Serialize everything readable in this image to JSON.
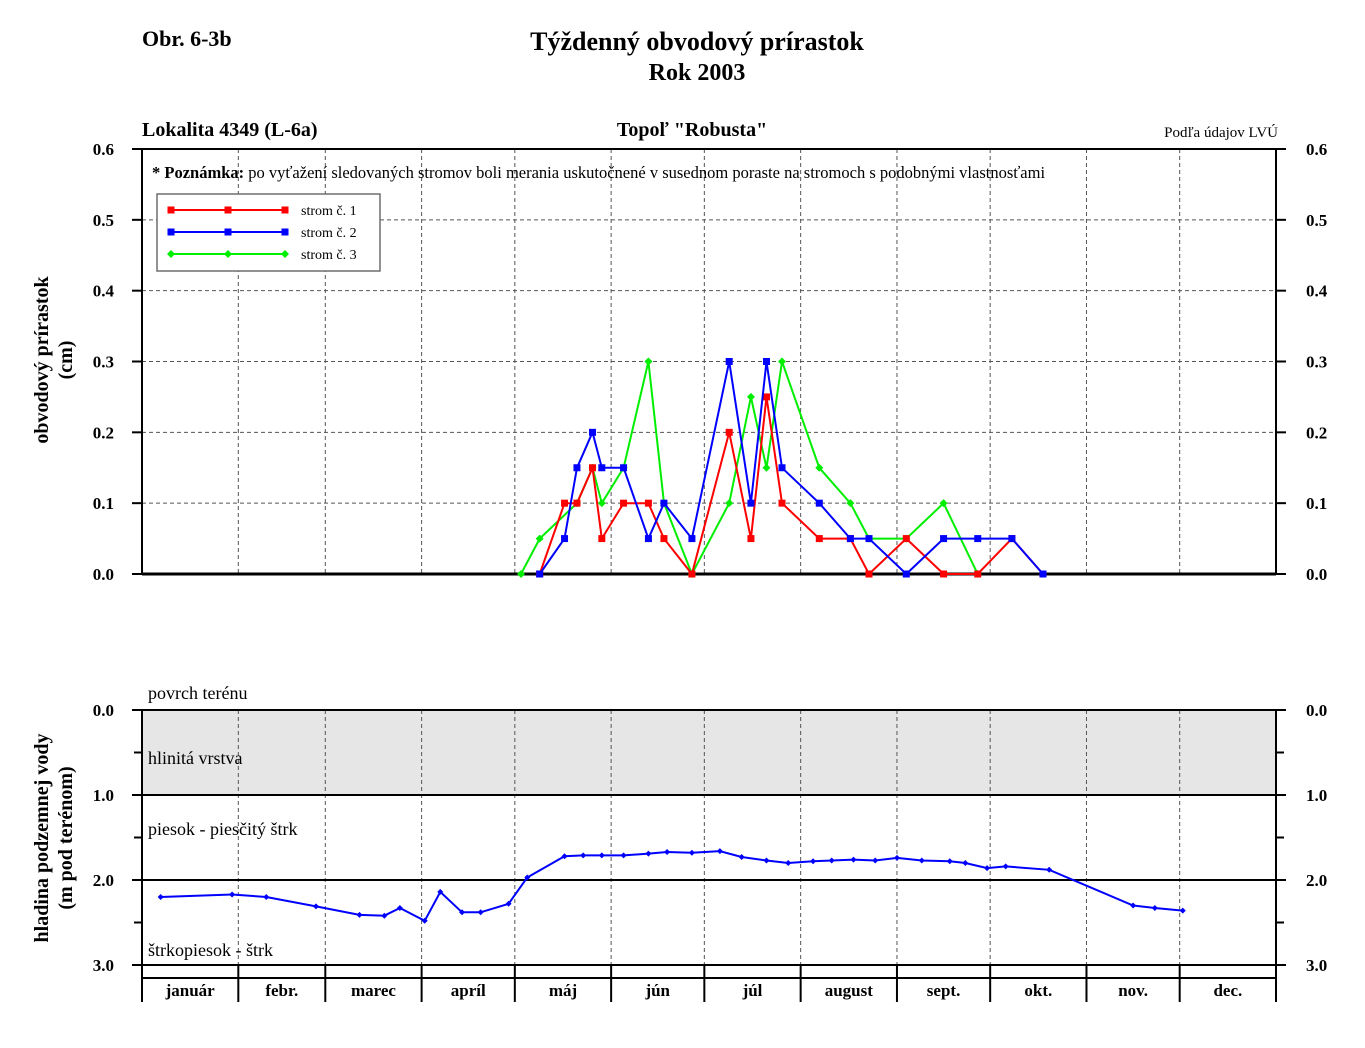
{
  "figure_label": "Obr. 6-3b",
  "title": "Týždenný obvodový prírastok",
  "subtitle": "Rok 2003",
  "colors": {
    "strom1": "#ff0000",
    "strom2": "#0000ff",
    "strom3": "#00ee00",
    "water": "#0000ff",
    "clay_fill": "#e6e6e6"
  },
  "chart_data": [
    {
      "type": "line",
      "header_left": "Lokalita 4349 (L-6a)",
      "header_center": "Topoľ \"Robusta\"",
      "header_right": "Podľa údajov LVÚ",
      "note_bold": "* Poznámka:",
      "note_text": " po vyťažení sledovaných stromov boli merania uskutočnené v susednom poraste na stromoch s podobnými vlastnosťami",
      "ylabel": "obvodový prírastok",
      "ylabel_unit": "(cm)",
      "ylim": [
        0,
        0.6
      ],
      "yticks": [
        "0.0",
        "0.1",
        "0.2",
        "0.3",
        "0.4",
        "0.5",
        "0.6"
      ],
      "grid": true,
      "legend_position": "top-left",
      "x_units": "day of year 2003",
      "series": [
        {
          "name": "strom č. 1",
          "color": "#ff0000",
          "marker": "square",
          "x": [
            128,
            136,
            140,
            145,
            148,
            155,
            163,
            168,
            177,
            189,
            196,
            201,
            206,
            218,
            228,
            234,
            246,
            258,
            269,
            280,
            290
          ],
          "values": [
            0,
            0.1,
            0.1,
            0.15,
            0.05,
            0.1,
            0.1,
            0.05,
            0,
            0.2,
            0.05,
            0.25,
            0.1,
            0.05,
            0.05,
            0,
            0.05,
            0,
            0,
            0.05,
            0
          ]
        },
        {
          "name": "strom č. 2",
          "color": "#0000ff",
          "marker": "square",
          "x": [
            128,
            136,
            140,
            145,
            148,
            155,
            163,
            168,
            177,
            189,
            196,
            201,
            206,
            218,
            228,
            234,
            246,
            258,
            269,
            280,
            290
          ],
          "values": [
            0,
            0.05,
            0.15,
            0.2,
            0.15,
            0.15,
            0.05,
            0.1,
            0.05,
            0.3,
            0.1,
            0.3,
            0.15,
            0.1,
            0.05,
            0.05,
            0,
            0.05,
            0.05,
            0.05,
            0
          ]
        },
        {
          "name": "strom č. 3",
          "color": "#00ee00",
          "marker": "diamond",
          "x": [
            122,
            128,
            140,
            145,
            148,
            155,
            163,
            168,
            177,
            189,
            196,
            201,
            206,
            218,
            228,
            234,
            246,
            258,
            269
          ],
          "values": [
            0,
            0.05,
            0.1,
            0.15,
            0.1,
            0.15,
            0.3,
            0.1,
            0,
            0.1,
            0.25,
            0.15,
            0.3,
            0.15,
            0.1,
            0.05,
            0.05,
            0.1,
            0
          ]
        }
      ]
    },
    {
      "type": "line",
      "ylabel": "hladina podzemnej vody",
      "ylabel_unit": "(m pod terénom)",
      "ylim": [
        0,
        3.0
      ],
      "y_inverted": true,
      "yticks": [
        "0.0",
        "1.0",
        "2.0",
        "3.0"
      ],
      "layers": [
        {
          "label": "povrch terénu",
          "depth": 0
        },
        {
          "label": "hlinitá vrstva",
          "from": 0,
          "to": 1
        },
        {
          "label": "piesok - piesčitý štrk",
          "from": 1,
          "to": 2
        },
        {
          "label": "štrkopiesok - štrk",
          "from": 2,
          "to": 3
        }
      ],
      "months": [
        "január",
        "febr.",
        "marec",
        "apríl",
        "máj",
        "jún",
        "júl",
        "august",
        "sept.",
        "okt.",
        "nov.",
        "dec."
      ],
      "series": [
        {
          "name": "hladina podzemnej vody",
          "color": "#0000ff",
          "x": [
            6,
            29,
            40,
            56,
            70,
            78,
            83,
            91,
            96,
            103,
            109,
            118,
            124,
            136,
            142,
            148,
            155,
            163,
            169,
            177,
            186,
            193,
            201,
            208,
            216,
            222,
            229,
            236,
            243,
            251,
            260,
            265,
            272,
            278,
            292,
            319,
            326,
            335
          ],
          "values": [
            2.2,
            2.17,
            2.2,
            2.31,
            2.41,
            2.42,
            2.33,
            2.48,
            2.14,
            2.38,
            2.38,
            2.28,
            1.97,
            1.72,
            1.71,
            1.71,
            1.71,
            1.69,
            1.67,
            1.68,
            1.66,
            1.73,
            1.77,
            1.8,
            1.78,
            1.77,
            1.76,
            1.77,
            1.74,
            1.77,
            1.78,
            1.8,
            1.86,
            1.84,
            1.88,
            2.3,
            2.33,
            2.36
          ]
        }
      ]
    }
  ]
}
